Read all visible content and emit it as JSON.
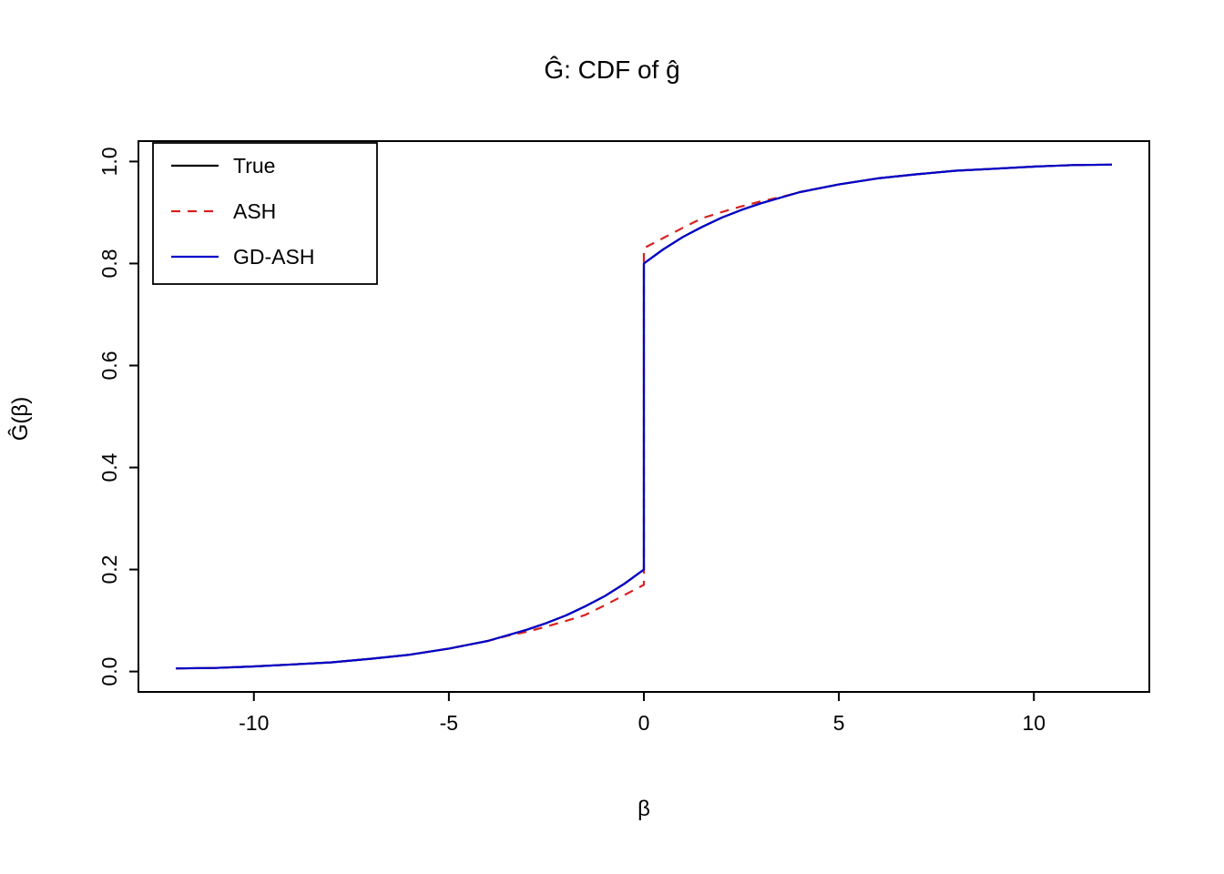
{
  "figure": {
    "background": "#ffffff"
  },
  "chart_data": {
    "type": "line",
    "title": "Ĝ: CDF of ĝ",
    "xlabel": "β",
    "ylabel": "Ĝ(β)",
    "xlim": [
      -12.96,
      12.96
    ],
    "ylim": [
      -0.04,
      1.04
    ],
    "grid": false,
    "x_ticks": {
      "values": [
        -10,
        -5,
        0,
        5,
        10
      ],
      "labels": [
        "-10",
        "-5",
        "0",
        "5",
        "10"
      ]
    },
    "y_ticks": {
      "values": [
        0.0,
        0.2,
        0.4,
        0.6,
        0.8,
        1.0
      ],
      "labels": [
        "0.0",
        "0.2",
        "0.4",
        "0.6",
        "0.8",
        "1.0"
      ]
    },
    "legend": {
      "position": "top-left",
      "entries": [
        {
          "label": "True",
          "color": "#000000",
          "dash": null
        },
        {
          "label": "ASH",
          "color": "#d92121",
          "dash": [
            10,
            8
          ]
        },
        {
          "label": "GD-ASH",
          "color": "#0000cc",
          "dash": null
        }
      ]
    },
    "series": [
      {
        "name": "True",
        "color": "#000000",
        "dash": null,
        "width": 2.2,
        "x": [
          -12,
          -11,
          -10,
          -9,
          -8,
          -7,
          -6,
          -5,
          -4,
          -3,
          -2.5,
          -2,
          -1.5,
          -1,
          -0.5,
          0,
          0,
          0.5,
          1,
          1.5,
          2,
          2.5,
          3,
          4,
          5,
          6,
          7,
          8,
          9,
          10,
          11,
          12
        ],
        "y": [
          0.006,
          0.007,
          0.01,
          0.014,
          0.018,
          0.025,
          0.033,
          0.045,
          0.06,
          0.082,
          0.095,
          0.11,
          0.128,
          0.148,
          0.172,
          0.2,
          0.8,
          0.828,
          0.852,
          0.872,
          0.89,
          0.905,
          0.918,
          0.94,
          0.955,
          0.967,
          0.975,
          0.982,
          0.986,
          0.99,
          0.993,
          0.994
        ]
      },
      {
        "name": "ASH",
        "color": "#d92121",
        "dash": [
          10,
          8
        ],
        "width": 2.2,
        "x": [
          -12,
          -11,
          -10,
          -9,
          -8,
          -7,
          -6,
          -5,
          -4,
          -3.5,
          -3,
          -2.5,
          -2,
          -1.5,
          -1,
          -0.5,
          0,
          0,
          0.5,
          1,
          1.5,
          2,
          2.5,
          3,
          3.5,
          4,
          5,
          6,
          7,
          8,
          9,
          10,
          11,
          12
        ],
        "y": [
          0.006,
          0.007,
          0.01,
          0.014,
          0.018,
          0.025,
          0.033,
          0.045,
          0.06,
          0.07,
          0.078,
          0.088,
          0.099,
          0.111,
          0.13,
          0.15,
          0.17,
          0.83,
          0.85,
          0.87,
          0.889,
          0.901,
          0.912,
          0.922,
          0.93,
          0.94,
          0.955,
          0.967,
          0.975,
          0.982,
          0.986,
          0.99,
          0.993,
          0.994
        ]
      },
      {
        "name": "GD-ASH",
        "color": "#0000cc",
        "dash": null,
        "width": 2.2,
        "x": [
          -12,
          -11,
          -10,
          -9,
          -8,
          -7,
          -6,
          -5,
          -4,
          -3,
          -2.5,
          -2,
          -1.5,
          -1,
          -0.5,
          0,
          0,
          0.5,
          1,
          1.5,
          2,
          2.5,
          3,
          4,
          5,
          6,
          7,
          8,
          9,
          10,
          11,
          12
        ],
        "y": [
          0.006,
          0.007,
          0.01,
          0.014,
          0.018,
          0.025,
          0.033,
          0.045,
          0.06,
          0.082,
          0.095,
          0.11,
          0.128,
          0.148,
          0.172,
          0.2,
          0.8,
          0.828,
          0.852,
          0.872,
          0.89,
          0.905,
          0.918,
          0.94,
          0.955,
          0.967,
          0.975,
          0.982,
          0.986,
          0.99,
          0.993,
          0.994
        ]
      }
    ]
  }
}
